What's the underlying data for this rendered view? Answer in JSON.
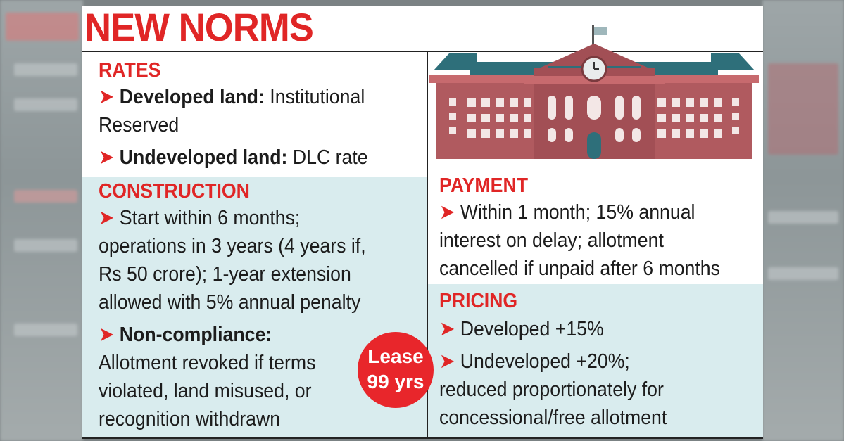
{
  "title": "NEW NORMS",
  "sections": {
    "rates": {
      "heading": "RATES",
      "item1_label": "Developed land:",
      "item1_text": " Institutional",
      "item1_text2": "Reserved",
      "item2_label": "Undeveloped land:",
      "item2_text": " DLC rate"
    },
    "construction": {
      "heading": "CONSTRUCTION",
      "lines": [
        "Start within 6 months;",
        "operations in 3 years (4 years if,",
        "Rs 50 crore); 1-year extension",
        "allowed with 5% annual penalty"
      ],
      "noncompliance_label": "Non-compliance:",
      "noncompliance_lines": [
        "Allotment revoked if terms",
        "violated, land misused, or",
        "recognition withdrawn"
      ]
    },
    "payment": {
      "heading": "PAYMENT",
      "lines": [
        "Within 1 month; 15% annual",
        "interest on delay; allotment",
        "cancelled if unpaid after 6 months"
      ]
    },
    "pricing": {
      "heading": "PRICING",
      "item1": "Developed +15%",
      "item2": "Undeveloped +20%;",
      "item2_lines": [
        "reduced proportionately for",
        "concessional/free allotment"
      ]
    }
  },
  "badge": {
    "line1": "Lease",
    "line2": "99 yrs"
  },
  "colors": {
    "accent": "#e02626",
    "panel": "#d9ecee",
    "building": "#b05a5f",
    "roof": "#2e6f7a"
  },
  "icons": {
    "bullet": "arrow-bullet-icon",
    "illustration": "college-building-icon"
  }
}
